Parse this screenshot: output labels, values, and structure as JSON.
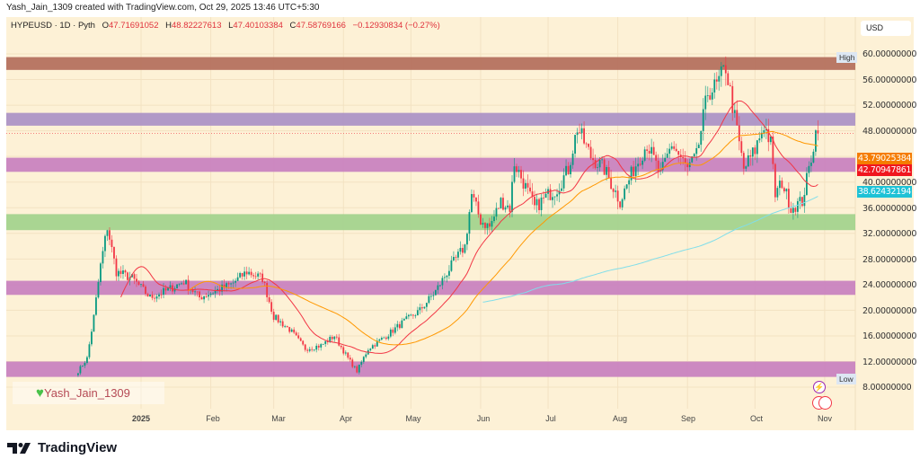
{
  "caption": "Yash_Jain_1309 created with TradingView.com, Oct 29, 2025 13:46 UTC+5:30",
  "legend": {
    "symbol": "HYPEUSD · 1D · Pyth",
    "open_label": "O",
    "open": "47.71691052",
    "high_label": "H",
    "high": "48.82227613",
    "low_label": "L",
    "low": "47.40103384",
    "close_label": "C",
    "close": "47.58769166",
    "change": "−0.12930834 (−0.27%)"
  },
  "currency": "USD",
  "price_axis": [
    "60.00000000",
    "56.00000000",
    "52.00000000",
    "48.00000000",
    "40.00000000",
    "36.00000000",
    "32.00000000",
    "28.00000000",
    "24.00000000",
    "20.00000000",
    "16.00000000",
    "12.00000000",
    "8.00000000"
  ],
  "price_tags": [
    {
      "label": "43.79025384",
      "color": "#f57c00"
    },
    {
      "label": "42.70947861",
      "color": "#f0161e"
    },
    {
      "label": "38.62432194",
      "color": "#1ec2d6"
    }
  ],
  "high_label": "High",
  "low_label": "Low",
  "time_axis": [
    "2025",
    "Feb",
    "Mar",
    "Apr",
    "May",
    "Jun",
    "Jul",
    "Aug",
    "Sep",
    "Oct",
    "Nov"
  ],
  "watermark": "Yash_Jain_1309",
  "brand": "TradingView",
  "colors": {
    "up": "#089981",
    "down": "#f23645",
    "background": "#fdf1d6",
    "ma_fast": "#f23645",
    "ma_mid": "#ff9800",
    "ma_slow": "#80deea"
  },
  "chart_data": {
    "type": "candlestick",
    "timeframe": "1D",
    "ylim": [
      8,
      60
    ],
    "price_zones": [
      {
        "from": 57.5,
        "to": 59.5,
        "color": "#b5715f"
      },
      {
        "from": 48.8,
        "to": 50.8,
        "color": "#ad93c6"
      },
      {
        "from": 41.6,
        "to": 43.8,
        "color": "#c983c0"
      },
      {
        "from": 32.5,
        "to": 35.0,
        "color": "#a4d38e"
      },
      {
        "from": 22.4,
        "to": 24.6,
        "color": "#c983c0"
      },
      {
        "from": 9.6,
        "to": 12.0,
        "color": "#c983c0"
      }
    ],
    "moving_averages": [
      20,
      50,
      200
    ],
    "last_price": 47.58769166,
    "approx_closes": [
      [
        "2024-12-04",
        10.5
      ],
      [
        "2024-12-08",
        12.5
      ],
      [
        "2024-12-11",
        19
      ],
      [
        "2024-12-14",
        27
      ],
      [
        "2024-12-17",
        33
      ],
      [
        "2024-12-21",
        26
      ],
      [
        "2024-12-28",
        25
      ],
      [
        "2025-01-05",
        22
      ],
      [
        "2025-01-12",
        23
      ],
      [
        "2025-01-20",
        24.5
      ],
      [
        "2025-01-27",
        22
      ],
      [
        "2025-02-03",
        23
      ],
      [
        "2025-02-10",
        24
      ],
      [
        "2025-02-17",
        26
      ],
      [
        "2025-02-24",
        25
      ],
      [
        "2025-03-01",
        19
      ],
      [
        "2025-03-08",
        17
      ],
      [
        "2025-03-15",
        14
      ],
      [
        "2025-03-22",
        14.5
      ],
      [
        "2025-03-28",
        16
      ],
      [
        "2025-04-03",
        12.5
      ],
      [
        "2025-04-07",
        10.5
      ],
      [
        "2025-04-12",
        14
      ],
      [
        "2025-04-20",
        16
      ],
      [
        "2025-04-27",
        18
      ],
      [
        "2025-05-05",
        20
      ],
      [
        "2025-05-12",
        23
      ],
      [
        "2025-05-19",
        27
      ],
      [
        "2025-05-25",
        30
      ],
      [
        "2025-05-28",
        38
      ],
      [
        "2025-06-01",
        34
      ],
      [
        "2025-06-05",
        33
      ],
      [
        "2025-06-10",
        37
      ],
      [
        "2025-06-14",
        36
      ],
      [
        "2025-06-16",
        43
      ],
      [
        "2025-06-20",
        40
      ],
      [
        "2025-06-25",
        36
      ],
      [
        "2025-07-01",
        38
      ],
      [
        "2025-07-05",
        39
      ],
      [
        "2025-07-10",
        42
      ],
      [
        "2025-07-14",
        48.5
      ],
      [
        "2025-07-20",
        44
      ],
      [
        "2025-07-26",
        42
      ],
      [
        "2025-08-02",
        37
      ],
      [
        "2025-08-08",
        42
      ],
      [
        "2025-08-14",
        46
      ],
      [
        "2025-08-20",
        41
      ],
      [
        "2025-08-25",
        46
      ],
      [
        "2025-09-01",
        42
      ],
      [
        "2025-09-05",
        44
      ],
      [
        "2025-09-10",
        54
      ],
      [
        "2025-09-14",
        55
      ],
      [
        "2025-09-18",
        58
      ],
      [
        "2025-09-22",
        50
      ],
      [
        "2025-09-26",
        42
      ],
      [
        "2025-10-01",
        45
      ],
      [
        "2025-10-05",
        49
      ],
      [
        "2025-10-08",
        46
      ],
      [
        "2025-10-10",
        38
      ],
      [
        "2025-10-13",
        40
      ],
      [
        "2025-10-17",
        36
      ],
      [
        "2025-10-22",
        37
      ],
      [
        "2025-10-25",
        42
      ],
      [
        "2025-10-28",
        47.7
      ],
      [
        "2025-10-29",
        47.59
      ]
    ]
  }
}
